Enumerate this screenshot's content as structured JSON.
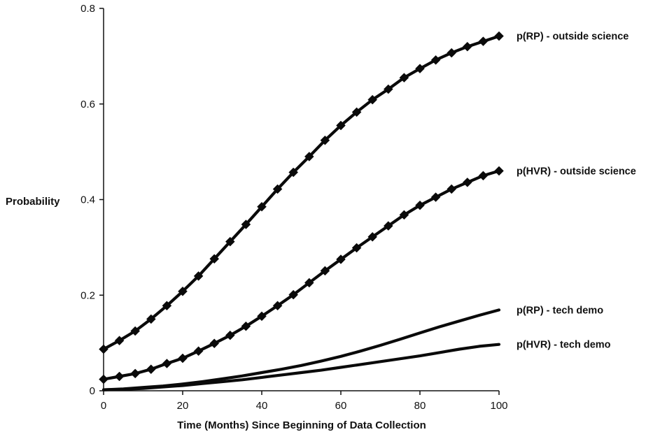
{
  "chart_data": {
    "type": "line",
    "xlabel": "Time (Months) Since Beginning of Data Collection",
    "ylabel": "Probability",
    "xlim": [
      0,
      100
    ],
    "ylim": [
      0,
      0.8
    ],
    "x_ticks": [
      0,
      20,
      40,
      60,
      80,
      100
    ],
    "y_ticks": [
      0,
      0.2,
      0.4,
      0.6,
      0.8
    ],
    "x_tick_labels": [
      "0",
      "20",
      "40",
      "60",
      "80",
      "100"
    ],
    "y_tick_labels": [
      "0",
      "0.2",
      "0.4",
      "0.6",
      "0.8"
    ],
    "grid": false,
    "legend": "labels at line ends (right)",
    "series": [
      {
        "name": "p(RP) - outside science",
        "markers": "diamond",
        "x": [
          0,
          4,
          8,
          12,
          16,
          20,
          24,
          28,
          32,
          36,
          40,
          44,
          48,
          52,
          56,
          60,
          64,
          68,
          72,
          76,
          80,
          84,
          88,
          92,
          96,
          100
        ],
        "y": [
          0.087,
          0.105,
          0.125,
          0.15,
          0.178,
          0.208,
          0.24,
          0.276,
          0.312,
          0.348,
          0.385,
          0.422,
          0.457,
          0.49,
          0.524,
          0.555,
          0.583,
          0.609,
          0.631,
          0.655,
          0.674,
          0.692,
          0.707,
          0.72,
          0.731,
          0.742
        ]
      },
      {
        "name": "p(HVR) - outside science",
        "markers": "diamond",
        "x": [
          0,
          4,
          8,
          12,
          16,
          20,
          24,
          28,
          32,
          36,
          40,
          44,
          48,
          52,
          56,
          60,
          64,
          68,
          72,
          76,
          80,
          84,
          88,
          92,
          96,
          100
        ],
        "y": [
          0.024,
          0.03,
          0.036,
          0.045,
          0.057,
          0.068,
          0.083,
          0.099,
          0.116,
          0.135,
          0.156,
          0.178,
          0.201,
          0.226,
          0.251,
          0.275,
          0.299,
          0.322,
          0.345,
          0.368,
          0.388,
          0.405,
          0.422,
          0.436,
          0.45,
          0.46
        ]
      },
      {
        "name": "p(RP) - tech demo",
        "markers": "none",
        "x": [
          0,
          5,
          10,
          15,
          20,
          25,
          30,
          35,
          40,
          45,
          50,
          55,
          60,
          65,
          70,
          75,
          80,
          85,
          90,
          95,
          100
        ],
        "y": [
          0.002,
          0.004,
          0.007,
          0.01,
          0.014,
          0.019,
          0.025,
          0.031,
          0.038,
          0.045,
          0.053,
          0.062,
          0.072,
          0.083,
          0.095,
          0.108,
          0.121,
          0.134,
          0.146,
          0.158,
          0.169
        ]
      },
      {
        "name": "p(HVR) - tech demo",
        "markers": "none",
        "x": [
          0,
          5,
          10,
          15,
          20,
          25,
          30,
          35,
          40,
          45,
          50,
          55,
          60,
          65,
          70,
          75,
          80,
          85,
          90,
          95,
          100
        ],
        "y": [
          0.002,
          0.003,
          0.005,
          0.008,
          0.011,
          0.015,
          0.019,
          0.023,
          0.028,
          0.033,
          0.038,
          0.043,
          0.049,
          0.055,
          0.061,
          0.067,
          0.073,
          0.08,
          0.087,
          0.093,
          0.097
        ]
      }
    ]
  }
}
